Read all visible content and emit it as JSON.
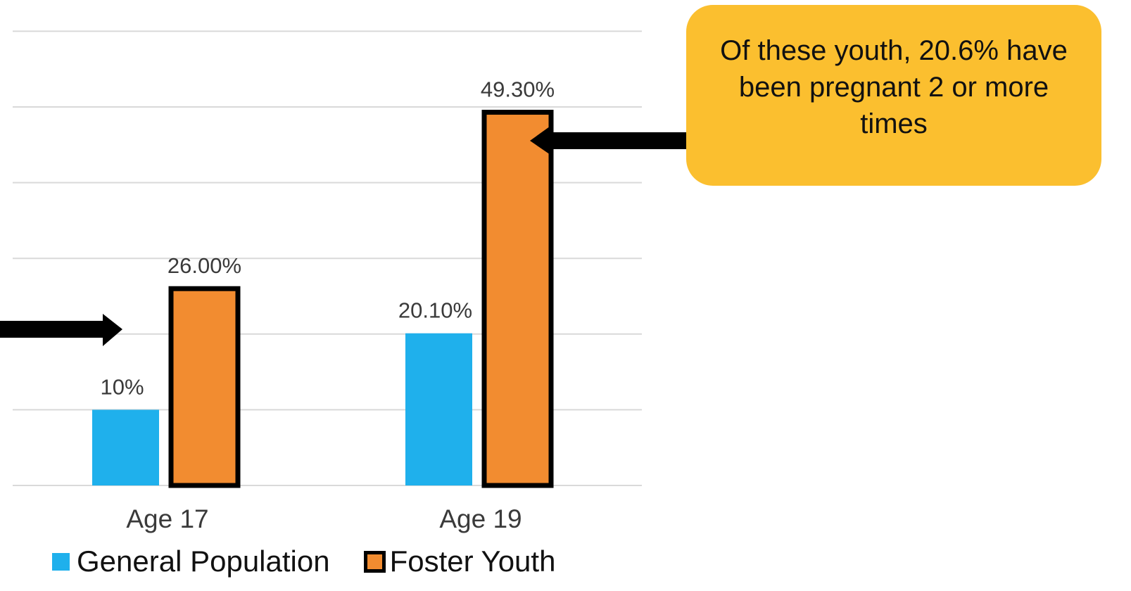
{
  "chart_data": {
    "type": "bar",
    "categories": [
      "Age 17",
      "Age 19"
    ],
    "series": [
      {
        "name": "General Population",
        "values": [
          10,
          20.1
        ],
        "labels": [
          "10%",
          "20.10%"
        ],
        "color": "#1FB0EC"
      },
      {
        "name": "Foster Youth",
        "values": [
          26,
          49.3
        ],
        "labels": [
          "26.00%",
          "49.30%"
        ],
        "color": "#F28C30"
      }
    ],
    "ylim": [
      0,
      60
    ],
    "grid": true,
    "legend_position": "bottom",
    "annotations": [
      {
        "text": "Of these youth, 20.6% have been pregnant 2 or more times",
        "points_to": "Foster Youth Age 19",
        "color": "#FBBF2F"
      }
    ]
  },
  "callout": {
    "text": "Of these youth, 20.6% have been pregnant 2 or more times"
  },
  "legend": {
    "general_label": "General Population",
    "foster_label": "Foster Youth"
  }
}
